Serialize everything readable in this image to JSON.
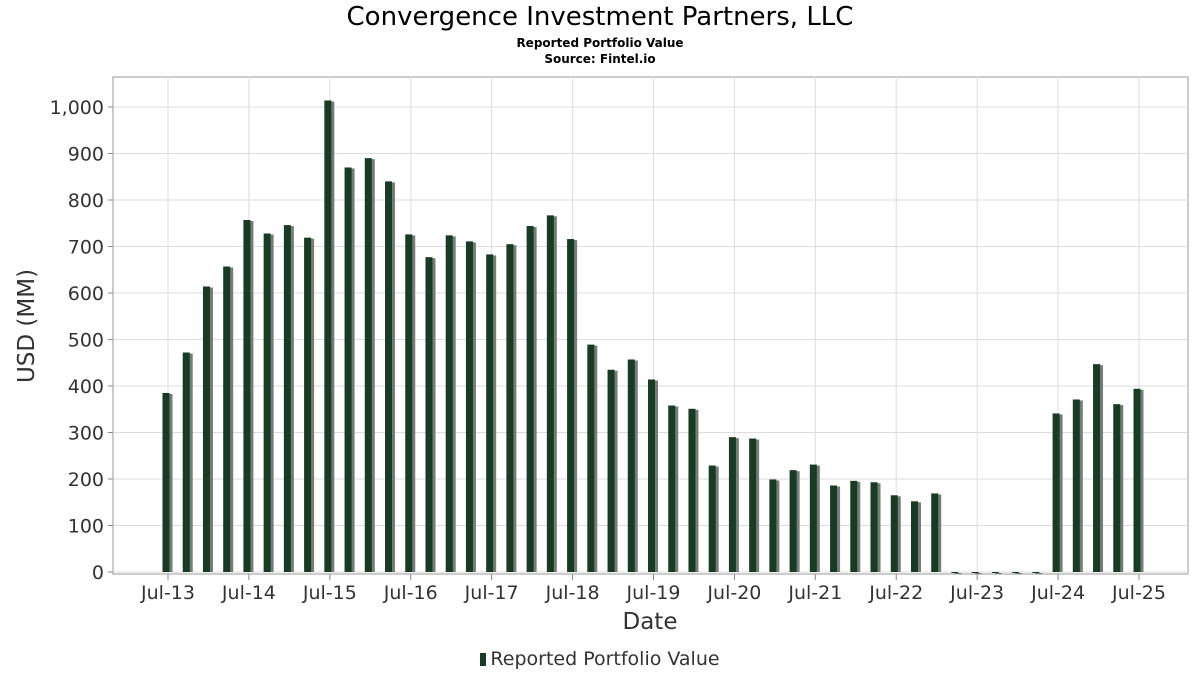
{
  "chart_data": {
    "type": "bar",
    "title": "Convergence Investment Partners, LLC",
    "subtitle_lines": [
      "Reported Portfolio Value",
      "Source: Fintel.io"
    ],
    "xlabel": "Date",
    "ylabel": "USD (MM)",
    "ylim": [
      0,
      1065
    ],
    "yticks": [
      "0",
      "100",
      "200",
      "300",
      "400",
      "500",
      "600",
      "700",
      "800",
      "900",
      "1,000"
    ],
    "x_tick_labels": [
      "Jul-13",
      "Jul-14",
      "Jul-15",
      "Jul-16",
      "Jul-17",
      "Jul-18",
      "Jul-19",
      "Jul-20",
      "Jul-21",
      "Jul-22",
      "Jul-23",
      "Jul-24",
      "Jul-25"
    ],
    "grid": true,
    "legend": "bottom-center",
    "series": [
      {
        "name": "Reported Portfolio Value",
        "color": "#163c22",
        "shadow_color": "#7a7a7a",
        "values": [
          385,
          472,
          614,
          657,
          757,
          728,
          746,
          719,
          1014,
          870,
          890,
          840,
          726,
          677,
          724,
          711,
          683,
          705,
          744,
          767,
          716,
          489,
          435,
          457,
          414,
          358,
          351,
          229,
          290,
          287,
          199,
          219,
          231,
          186,
          196,
          193,
          165,
          152,
          169,
          0,
          0,
          0,
          0,
          0,
          341,
          371,
          447,
          361,
          394
        ]
      }
    ]
  }
}
